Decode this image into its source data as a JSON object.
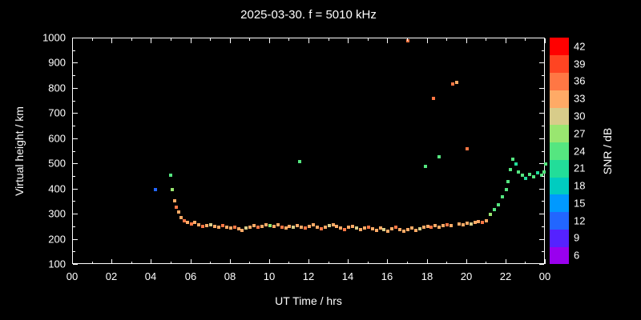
{
  "title": "2025-03-30. f = 5010 kHz",
  "chart_data": {
    "type": "scatter",
    "title": "2025-03-30. f = 5010 kHz",
    "xlabel": "UT Time / hrs",
    "ylabel": "Virtual height / km",
    "colorbar_label": "SNR / dB",
    "xlim": [
      0,
      24
    ],
    "ylim": [
      100,
      1000
    ],
    "grid": false,
    "background": "#000000",
    "x_ticks": [
      "00",
      "02",
      "04",
      "06",
      "08",
      "10",
      "12",
      "14",
      "16",
      "18",
      "20",
      "22",
      "00"
    ],
    "y_ticks": [
      100,
      200,
      300,
      400,
      500,
      600,
      700,
      800,
      900,
      1000
    ],
    "colorbar_ticks": [
      6,
      9,
      12,
      15,
      18,
      21,
      24,
      27,
      30,
      33,
      36,
      39,
      42
    ],
    "color_scale": [
      {
        "value": 6,
        "color": "#9900ee"
      },
      {
        "value": 9,
        "color": "#5522ff"
      },
      {
        "value": 12,
        "color": "#2266ff"
      },
      {
        "value": 15,
        "color": "#0099ff"
      },
      {
        "value": 18,
        "color": "#00ccc0"
      },
      {
        "value": 21,
        "color": "#22dd99"
      },
      {
        "value": 24,
        "color": "#55e680"
      },
      {
        "value": 27,
        "color": "#99e670"
      },
      {
        "value": 30,
        "color": "#d8cc8a"
      },
      {
        "value": 33,
        "color": "#ffaa66"
      },
      {
        "value": 36,
        "color": "#ff7744"
      },
      {
        "value": 39,
        "color": "#ff4422"
      },
      {
        "value": 42,
        "color": "#ff0000"
      }
    ],
    "points": [
      [
        4.2,
        400,
        12
      ],
      [
        4.95,
        455,
        24
      ],
      [
        5.05,
        400,
        27
      ],
      [
        5.15,
        355,
        33
      ],
      [
        5.25,
        330,
        36
      ],
      [
        5.35,
        310,
        33
      ],
      [
        5.5,
        288,
        33
      ],
      [
        5.65,
        275,
        36
      ],
      [
        5.8,
        268,
        33
      ],
      [
        6.0,
        262,
        36
      ],
      [
        6.2,
        268,
        33
      ],
      [
        6.4,
        258,
        33
      ],
      [
        6.6,
        252,
        36
      ],
      [
        6.8,
        255,
        33
      ],
      [
        7.0,
        258,
        30
      ],
      [
        7.2,
        252,
        33
      ],
      [
        7.4,
        248,
        33
      ],
      [
        7.6,
        255,
        36
      ],
      [
        7.8,
        250,
        33
      ],
      [
        8.0,
        245,
        33
      ],
      [
        8.2,
        250,
        36
      ],
      [
        8.4,
        242,
        33
      ],
      [
        8.6,
        238,
        33
      ],
      [
        8.8,
        245,
        30
      ],
      [
        9.0,
        250,
        33
      ],
      [
        9.2,
        255,
        33
      ],
      [
        9.4,
        248,
        36
      ],
      [
        9.6,
        252,
        33
      ],
      [
        9.8,
        258,
        33
      ],
      [
        10.0,
        255,
        27
      ],
      [
        10.2,
        252,
        33
      ],
      [
        10.4,
        258,
        33
      ],
      [
        10.6,
        250,
        36
      ],
      [
        10.8,
        245,
        33
      ],
      [
        11.0,
        252,
        33
      ],
      [
        11.2,
        248,
        30
      ],
      [
        11.4,
        255,
        33
      ],
      [
        11.5,
        510,
        24
      ],
      [
        11.6,
        250,
        33
      ],
      [
        11.8,
        245,
        36
      ],
      [
        12.0,
        252,
        33
      ],
      [
        12.2,
        258,
        33
      ],
      [
        12.4,
        248,
        33
      ],
      [
        12.6,
        242,
        36
      ],
      [
        12.8,
        250,
        33
      ],
      [
        13.0,
        255,
        30
      ],
      [
        13.2,
        260,
        33
      ],
      [
        13.4,
        252,
        33
      ],
      [
        13.6,
        245,
        33
      ],
      [
        13.8,
        240,
        36
      ],
      [
        14.0,
        248,
        33
      ],
      [
        14.2,
        252,
        33
      ],
      [
        14.4,
        245,
        30
      ],
      [
        14.6,
        240,
        33
      ],
      [
        14.8,
        245,
        33
      ],
      [
        15.0,
        250,
        36
      ],
      [
        15.2,
        242,
        33
      ],
      [
        15.4,
        238,
        33
      ],
      [
        15.6,
        245,
        33
      ],
      [
        15.8,
        240,
        30
      ],
      [
        16.0,
        235,
        33
      ],
      [
        16.2,
        242,
        33
      ],
      [
        16.4,
        248,
        36
      ],
      [
        16.6,
        240,
        33
      ],
      [
        16.8,
        235,
        33
      ],
      [
        17.0,
        990,
        36
      ],
      [
        17.0,
        240,
        33
      ],
      [
        17.2,
        245,
        33
      ],
      [
        17.4,
        238,
        33
      ],
      [
        17.6,
        242,
        30
      ],
      [
        17.8,
        248,
        33
      ],
      [
        17.9,
        490,
        24
      ],
      [
        18.0,
        252,
        33
      ],
      [
        18.2,
        248,
        36
      ],
      [
        18.3,
        760,
        36
      ],
      [
        18.4,
        255,
        33
      ],
      [
        18.6,
        530,
        24
      ],
      [
        18.6,
        250,
        33
      ],
      [
        18.8,
        255,
        33
      ],
      [
        19.0,
        260,
        36
      ],
      [
        19.2,
        255,
        33
      ],
      [
        19.3,
        820,
        36
      ],
      [
        19.5,
        825,
        33
      ],
      [
        19.6,
        262,
        33
      ],
      [
        19.8,
        258,
        33
      ],
      [
        20.0,
        560,
        36
      ],
      [
        20.0,
        265,
        33
      ],
      [
        20.2,
        262,
        30
      ],
      [
        20.4,
        268,
        33
      ],
      [
        20.6,
        272,
        33
      ],
      [
        20.8,
        268,
        36
      ],
      [
        21.0,
        275,
        33
      ],
      [
        21.2,
        300,
        27
      ],
      [
        21.4,
        320,
        24
      ],
      [
        21.6,
        340,
        24
      ],
      [
        21.8,
        370,
        24
      ],
      [
        22.0,
        400,
        24
      ],
      [
        22.1,
        430,
        24
      ],
      [
        22.2,
        480,
        24
      ],
      [
        22.35,
        520,
        24
      ],
      [
        22.5,
        500,
        21
      ],
      [
        22.6,
        470,
        24
      ],
      [
        22.8,
        455,
        24
      ],
      [
        23.0,
        445,
        21
      ],
      [
        23.2,
        460,
        24
      ],
      [
        23.4,
        450,
        24
      ],
      [
        23.6,
        465,
        21
      ],
      [
        23.8,
        455,
        24
      ],
      [
        23.9,
        470,
        24
      ],
      [
        24.0,
        500,
        24
      ]
    ]
  }
}
